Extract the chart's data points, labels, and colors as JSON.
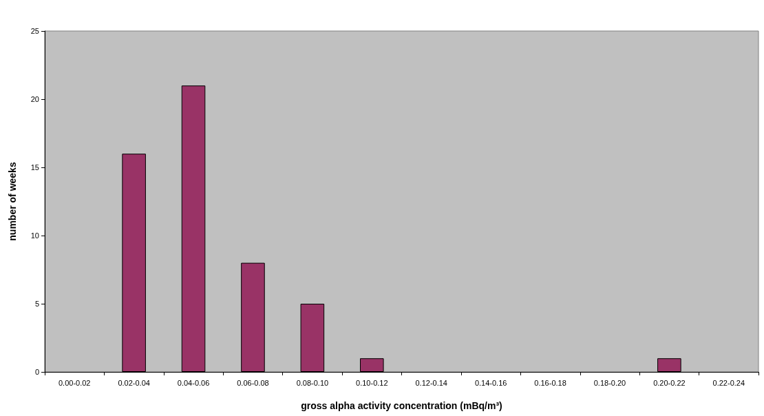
{
  "chart_data": {
    "type": "bar",
    "xlabel": "gross alpha activity concentration (mBq/m³)",
    "ylabel": "number of weeks",
    "categories": [
      "0.00-0.02",
      "0.02-0.04",
      "0.04-0.06",
      "0.06-0.08",
      "0.08-0.10",
      "0.10-0.12",
      "0.12-0.14",
      "0.14-0.16",
      "0.16-0.18",
      "0.18-0.20",
      "0.20-0.22",
      "0.22-0.24"
    ],
    "values": [
      0,
      16,
      21,
      8,
      5,
      1,
      0,
      0,
      0,
      0,
      1,
      0
    ],
    "color": "#993366",
    "ylim": [
      0,
      25
    ],
    "yticks": [
      0,
      5,
      10,
      15,
      20,
      25
    ],
    "grid": false
  }
}
